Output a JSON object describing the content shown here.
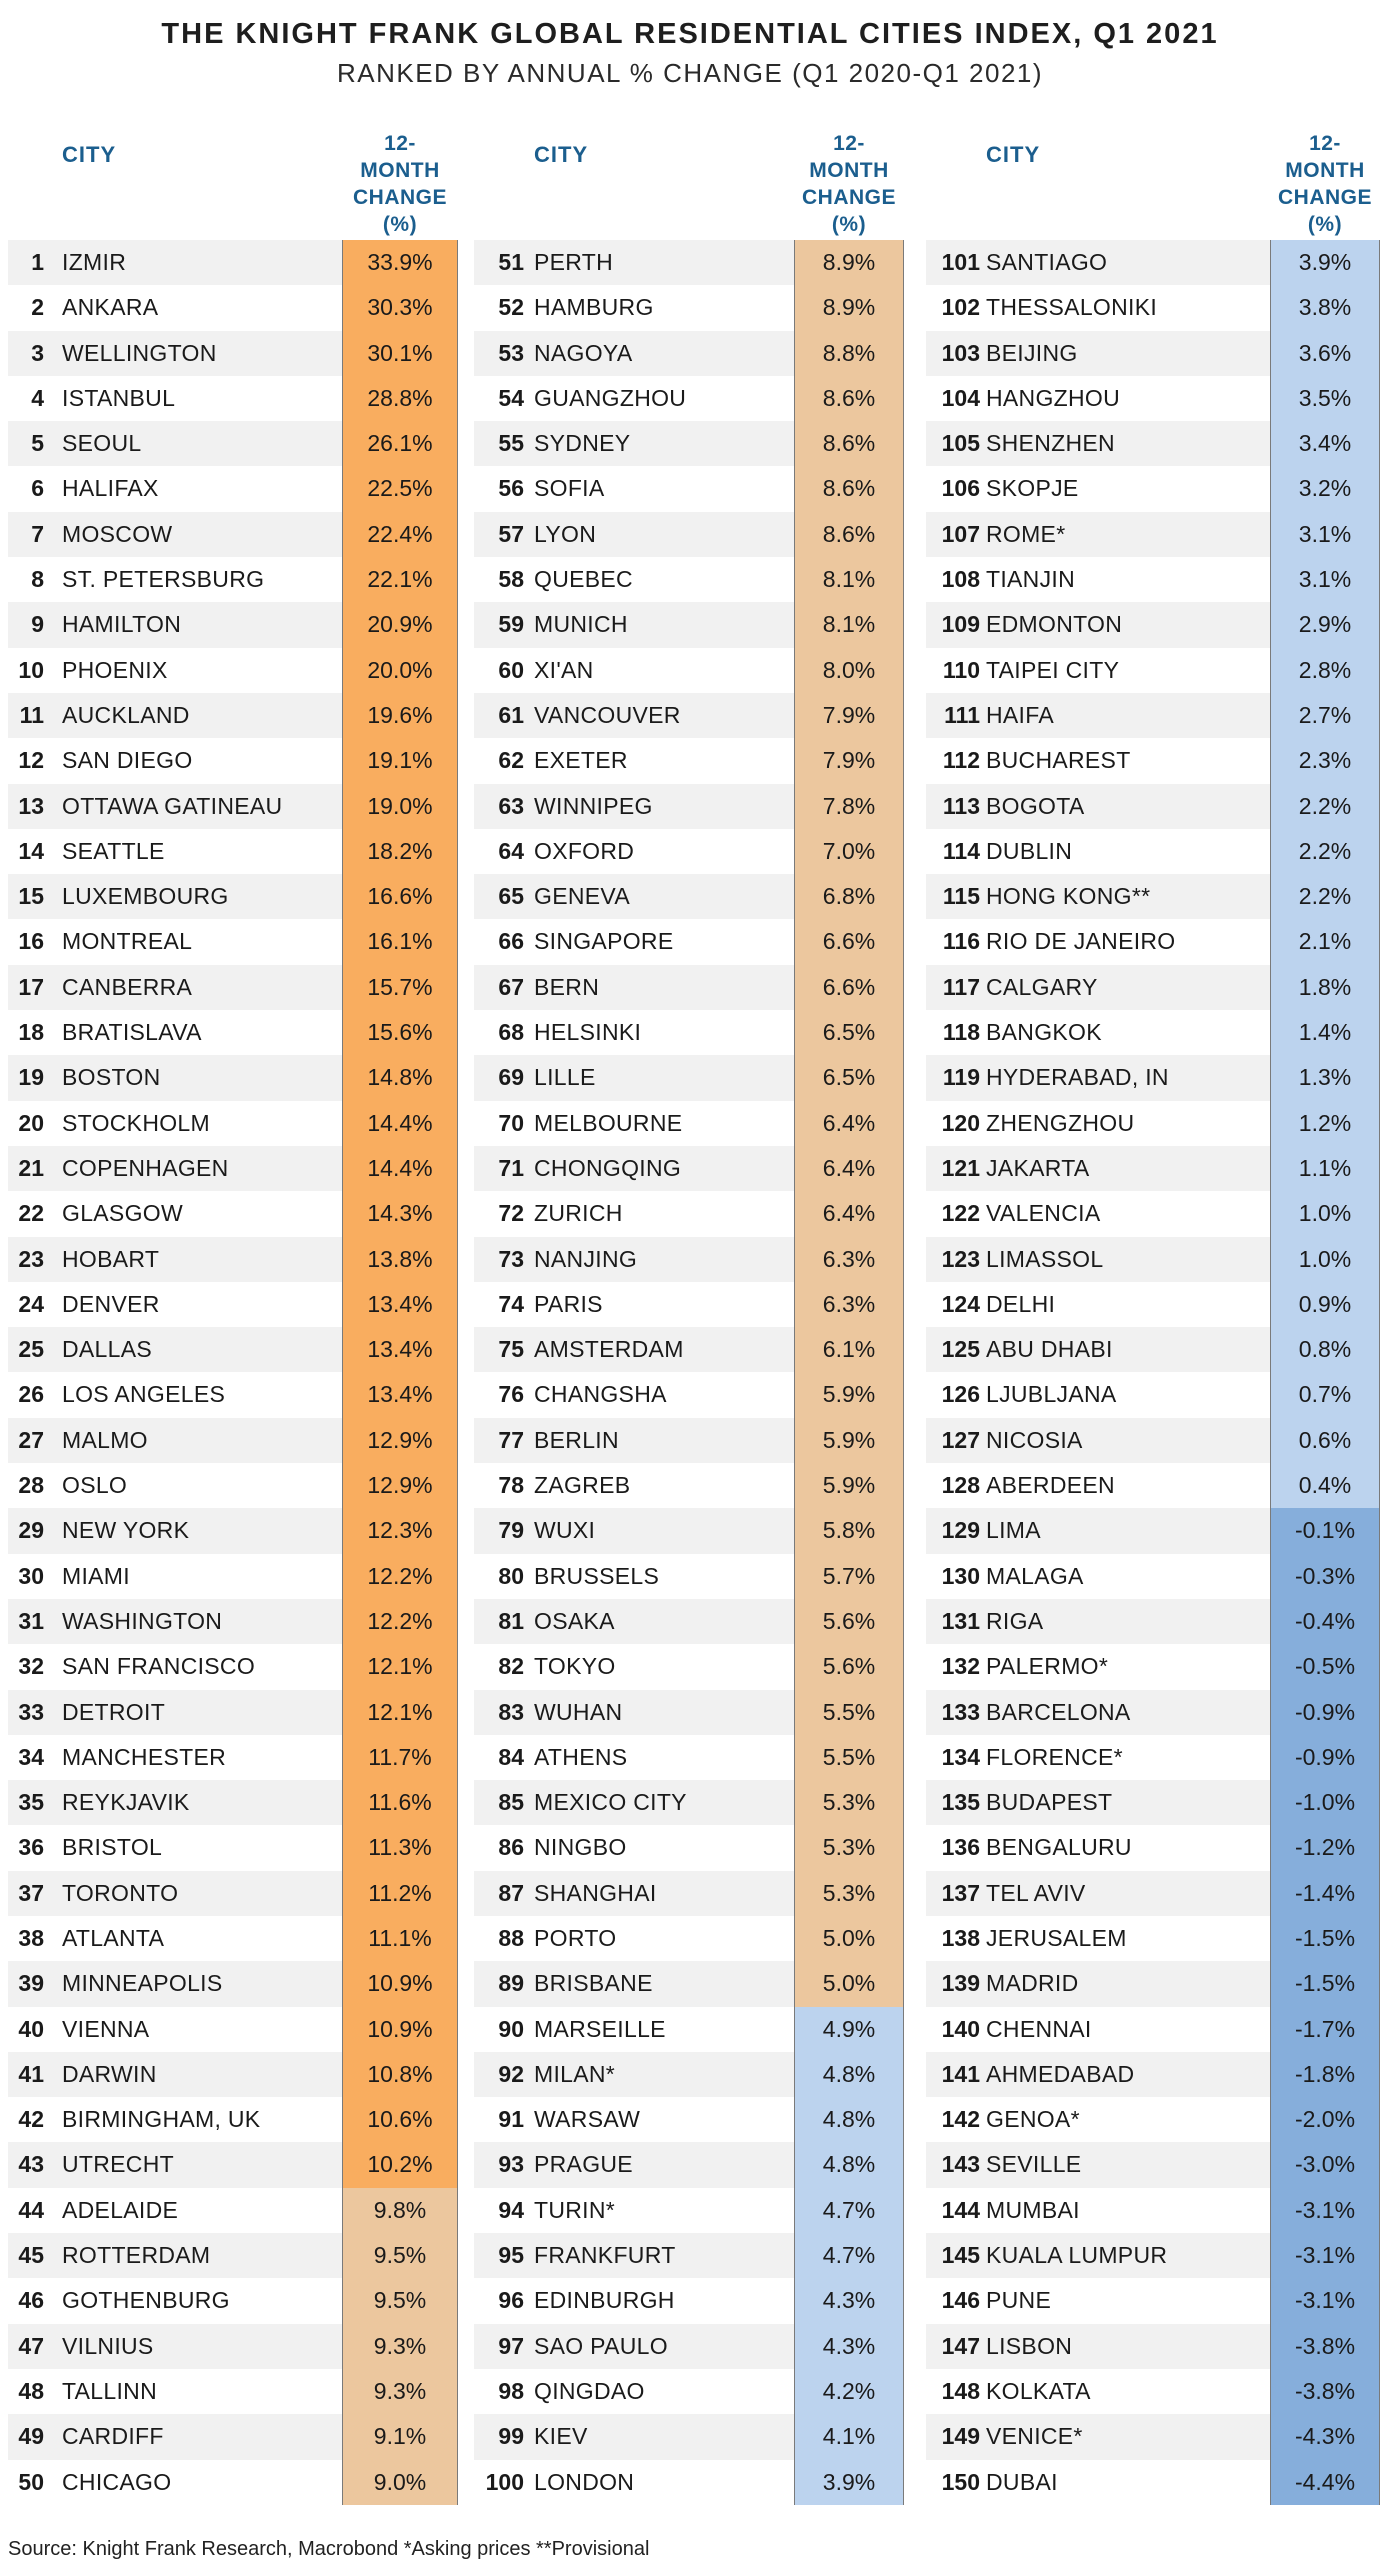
{
  "title": "THE KNIGHT FRANK GLOBAL RESIDENTIAL CITIES INDEX, Q1 2021",
  "subtitle": "RANKED BY ANNUAL % CHANGE (Q1 2020-Q1 2021)",
  "column_headers": {
    "city": "CITY",
    "change": [
      "12-",
      "MONTH",
      "CHANGE",
      "(%)"
    ]
  },
  "colors": {
    "strong_growth": "#f9ad5f",
    "moderate_growth": "#ecc79e",
    "low_growth": "#bcd3ee",
    "decline": "#86aedb",
    "header_text": "#1b5e8e"
  },
  "chart_data": {
    "type": "table",
    "title": "THE KNIGHT FRANK GLOBAL RESIDENTIAL CITIES INDEX, Q1 2021",
    "subtitle": "RANKED BY ANNUAL % CHANGE (Q1 2020-Q1 2021)",
    "columns": [
      "Rank",
      "City",
      "12-month change (%)"
    ],
    "rows": [
      {
        "rank": 1,
        "city": "IZMIR",
        "value": 33.9,
        "label": "33.9%"
      },
      {
        "rank": 2,
        "city": "ANKARA",
        "value": 30.3,
        "label": "30.3%"
      },
      {
        "rank": 3,
        "city": "WELLINGTON",
        "value": 30.1,
        "label": "30.1%"
      },
      {
        "rank": 4,
        "city": "ISTANBUL",
        "value": 28.8,
        "label": "28.8%"
      },
      {
        "rank": 5,
        "city": "SEOUL",
        "value": 26.1,
        "label": "26.1%"
      },
      {
        "rank": 6,
        "city": "HALIFAX",
        "value": 22.5,
        "label": "22.5%"
      },
      {
        "rank": 7,
        "city": "MOSCOW",
        "value": 22.4,
        "label": "22.4%"
      },
      {
        "rank": 8,
        "city": "ST. PETERSBURG",
        "value": 22.1,
        "label": "22.1%"
      },
      {
        "rank": 9,
        "city": "HAMILTON",
        "value": 20.9,
        "label": "20.9%"
      },
      {
        "rank": 10,
        "city": "PHOENIX",
        "value": 20.0,
        "label": "20.0%"
      },
      {
        "rank": 11,
        "city": "AUCKLAND",
        "value": 19.6,
        "label": "19.6%"
      },
      {
        "rank": 12,
        "city": "SAN DIEGO",
        "value": 19.1,
        "label": "19.1%"
      },
      {
        "rank": 13,
        "city": "OTTAWA GATINEAU",
        "value": 19.0,
        "label": "19.0%"
      },
      {
        "rank": 14,
        "city": "SEATTLE",
        "value": 18.2,
        "label": "18.2%"
      },
      {
        "rank": 15,
        "city": "LUXEMBOURG",
        "value": 16.6,
        "label": "16.6%"
      },
      {
        "rank": 16,
        "city": "MONTREAL",
        "value": 16.1,
        "label": "16.1%"
      },
      {
        "rank": 17,
        "city": "CANBERRA",
        "value": 15.7,
        "label": "15.7%"
      },
      {
        "rank": 18,
        "city": "BRATISLAVA",
        "value": 15.6,
        "label": "15.6%"
      },
      {
        "rank": 19,
        "city": "BOSTON",
        "value": 14.8,
        "label": "14.8%"
      },
      {
        "rank": 20,
        "city": "STOCKHOLM",
        "value": 14.4,
        "label": "14.4%"
      },
      {
        "rank": 21,
        "city": "COPENHAGEN",
        "value": 14.4,
        "label": "14.4%"
      },
      {
        "rank": 22,
        "city": "GLASGOW",
        "value": 14.3,
        "label": "14.3%"
      },
      {
        "rank": 23,
        "city": "HOBART",
        "value": 13.8,
        "label": "13.8%"
      },
      {
        "rank": 24,
        "city": "DENVER",
        "value": 13.4,
        "label": "13.4%"
      },
      {
        "rank": 25,
        "city": "DALLAS",
        "value": 13.4,
        "label": "13.4%"
      },
      {
        "rank": 26,
        "city": "LOS ANGELES",
        "value": 13.4,
        "label": "13.4%"
      },
      {
        "rank": 27,
        "city": "MALMO",
        "value": 12.9,
        "label": "12.9%"
      },
      {
        "rank": 28,
        "city": "OSLO",
        "value": 12.9,
        "label": "12.9%"
      },
      {
        "rank": 29,
        "city": "NEW YORK",
        "value": 12.3,
        "label": "12.3%"
      },
      {
        "rank": 30,
        "city": "MIAMI",
        "value": 12.2,
        "label": "12.2%"
      },
      {
        "rank": 31,
        "city": "WASHINGTON",
        "value": 12.2,
        "label": "12.2%"
      },
      {
        "rank": 32,
        "city": "SAN FRANCISCO",
        "value": 12.1,
        "label": "12.1%"
      },
      {
        "rank": 33,
        "city": "DETROIT",
        "value": 12.1,
        "label": "12.1%"
      },
      {
        "rank": 34,
        "city": "MANCHESTER",
        "value": 11.7,
        "label": "11.7%"
      },
      {
        "rank": 35,
        "city": "REYKJAVIK",
        "value": 11.6,
        "label": "11.6%"
      },
      {
        "rank": 36,
        "city": "BRISTOL",
        "value": 11.3,
        "label": "11.3%"
      },
      {
        "rank": 37,
        "city": "TORONTO",
        "value": 11.2,
        "label": "11.2%"
      },
      {
        "rank": 38,
        "city": "ATLANTA",
        "value": 11.1,
        "label": "11.1%"
      },
      {
        "rank": 39,
        "city": "MINNEAPOLIS",
        "value": 10.9,
        "label": "10.9%"
      },
      {
        "rank": 40,
        "city": "VIENNA",
        "value": 10.9,
        "label": "10.9%"
      },
      {
        "rank": 41,
        "city": "DARWIN",
        "value": 10.8,
        "label": "10.8%"
      },
      {
        "rank": 42,
        "city": "BIRMINGHAM, UK",
        "value": 10.6,
        "label": "10.6%"
      },
      {
        "rank": 43,
        "city": "UTRECHT",
        "value": 10.2,
        "label": "10.2%"
      },
      {
        "rank": 44,
        "city": "ADELAIDE",
        "value": 9.8,
        "label": "9.8%"
      },
      {
        "rank": 45,
        "city": "ROTTERDAM",
        "value": 9.5,
        "label": "9.5%"
      },
      {
        "rank": 46,
        "city": "GOTHENBURG",
        "value": 9.5,
        "label": "9.5%"
      },
      {
        "rank": 47,
        "city": "VILNIUS",
        "value": 9.3,
        "label": "9.3%"
      },
      {
        "rank": 48,
        "city": "TALLINN",
        "value": 9.3,
        "label": "9.3%"
      },
      {
        "rank": 49,
        "city": "CARDIFF",
        "value": 9.1,
        "label": "9.1%"
      },
      {
        "rank": 50,
        "city": "CHICAGO",
        "value": 9.0,
        "label": "9.0%"
      },
      {
        "rank": 51,
        "city": "PERTH",
        "value": 8.9,
        "label": "8.9%"
      },
      {
        "rank": 52,
        "city": "HAMBURG",
        "value": 8.9,
        "label": "8.9%"
      },
      {
        "rank": 53,
        "city": "NAGOYA",
        "value": 8.8,
        "label": "8.8%"
      },
      {
        "rank": 54,
        "city": "GUANGZHOU",
        "value": 8.6,
        "label": "8.6%"
      },
      {
        "rank": 55,
        "city": "SYDNEY",
        "value": 8.6,
        "label": "8.6%"
      },
      {
        "rank": 56,
        "city": "SOFIA",
        "value": 8.6,
        "label": "8.6%"
      },
      {
        "rank": 57,
        "city": "LYON",
        "value": 8.6,
        "label": "8.6%"
      },
      {
        "rank": 58,
        "city": "QUEBEC",
        "value": 8.1,
        "label": "8.1%"
      },
      {
        "rank": 59,
        "city": "MUNICH",
        "value": 8.1,
        "label": "8.1%"
      },
      {
        "rank": 60,
        "city": "XI'AN",
        "value": 8.0,
        "label": "8.0%"
      },
      {
        "rank": 61,
        "city": "VANCOUVER",
        "value": 7.9,
        "label": "7.9%"
      },
      {
        "rank": 62,
        "city": "EXETER",
        "value": 7.9,
        "label": "7.9%"
      },
      {
        "rank": 63,
        "city": "WINNIPEG",
        "value": 7.8,
        "label": "7.8%"
      },
      {
        "rank": 64,
        "city": "OXFORD",
        "value": 7.0,
        "label": "7.0%"
      },
      {
        "rank": 65,
        "city": "GENEVA",
        "value": 6.8,
        "label": "6.8%"
      },
      {
        "rank": 66,
        "city": "SINGAPORE",
        "value": 6.6,
        "label": "6.6%"
      },
      {
        "rank": 67,
        "city": "BERN",
        "value": 6.6,
        "label": "6.6%"
      },
      {
        "rank": 68,
        "city": "HELSINKI",
        "value": 6.5,
        "label": "6.5%"
      },
      {
        "rank": 69,
        "city": "LILLE",
        "value": 6.5,
        "label": "6.5%"
      },
      {
        "rank": 70,
        "city": "MELBOURNE",
        "value": 6.4,
        "label": "6.4%"
      },
      {
        "rank": 71,
        "city": "CHONGQING",
        "value": 6.4,
        "label": "6.4%"
      },
      {
        "rank": 72,
        "city": "ZURICH",
        "value": 6.4,
        "label": "6.4%"
      },
      {
        "rank": 73,
        "city": "NANJING",
        "value": 6.3,
        "label": "6.3%"
      },
      {
        "rank": 74,
        "city": "PARIS",
        "value": 6.3,
        "label": "6.3%"
      },
      {
        "rank": 75,
        "city": "AMSTERDAM",
        "value": 6.1,
        "label": "6.1%"
      },
      {
        "rank": 76,
        "city": "CHANGSHA",
        "value": 5.9,
        "label": "5.9%"
      },
      {
        "rank": 77,
        "city": "BERLIN",
        "value": 5.9,
        "label": "5.9%"
      },
      {
        "rank": 78,
        "city": "ZAGREB",
        "value": 5.9,
        "label": "5.9%"
      },
      {
        "rank": 79,
        "city": "WUXI",
        "value": 5.8,
        "label": "5.8%"
      },
      {
        "rank": 80,
        "city": "BRUSSELS",
        "value": 5.7,
        "label": "5.7%"
      },
      {
        "rank": 81,
        "city": "OSAKA",
        "value": 5.6,
        "label": "5.6%"
      },
      {
        "rank": 82,
        "city": "TOKYO",
        "value": 5.6,
        "label": "5.6%"
      },
      {
        "rank": 83,
        "city": "WUHAN",
        "value": 5.5,
        "label": "5.5%"
      },
      {
        "rank": 84,
        "city": "ATHENS",
        "value": 5.5,
        "label": "5.5%"
      },
      {
        "rank": 85,
        "city": "MEXICO CITY",
        "value": 5.3,
        "label": "5.3%"
      },
      {
        "rank": 86,
        "city": "NINGBO",
        "value": 5.3,
        "label": "5.3%"
      },
      {
        "rank": 87,
        "city": "SHANGHAI",
        "value": 5.3,
        "label": "5.3%"
      },
      {
        "rank": 88,
        "city": "PORTO",
        "value": 5.0,
        "label": "5.0%"
      },
      {
        "rank": 89,
        "city": "BRISBANE",
        "value": 5.0,
        "label": "5.0%"
      },
      {
        "rank": 90,
        "city": "MARSEILLE",
        "value": 4.9,
        "label": "4.9%"
      },
      {
        "rank": 92,
        "city": "MILAN*",
        "value": 4.8,
        "label": "4.8%"
      },
      {
        "rank": 91,
        "city": "WARSAW",
        "value": 4.8,
        "label": "4.8%"
      },
      {
        "rank": 93,
        "city": "PRAGUE",
        "value": 4.8,
        "label": "4.8%"
      },
      {
        "rank": 94,
        "city": "TURIN*",
        "value": 4.7,
        "label": "4.7%"
      },
      {
        "rank": 95,
        "city": "FRANKFURT",
        "value": 4.7,
        "label": "4.7%"
      },
      {
        "rank": 96,
        "city": "EDINBURGH",
        "value": 4.3,
        "label": "4.3%"
      },
      {
        "rank": 97,
        "city": "SAO PAULO",
        "value": 4.3,
        "label": "4.3%"
      },
      {
        "rank": 98,
        "city": "QINGDAO",
        "value": 4.2,
        "label": "4.2%"
      },
      {
        "rank": 99,
        "city": "KIEV",
        "value": 4.1,
        "label": "4.1%"
      },
      {
        "rank": 100,
        "city": "LONDON",
        "value": 3.9,
        "label": "3.9%"
      },
      {
        "rank": 101,
        "city": "SANTIAGO",
        "value": 3.9,
        "label": "3.9%"
      },
      {
        "rank": 102,
        "city": "THESSALONIKI",
        "value": 3.8,
        "label": "3.8%"
      },
      {
        "rank": 103,
        "city": "BEIJING",
        "value": 3.6,
        "label": "3.6%"
      },
      {
        "rank": 104,
        "city": "HANGZHOU",
        "value": 3.5,
        "label": "3.5%"
      },
      {
        "rank": 105,
        "city": "SHENZHEN",
        "value": 3.4,
        "label": "3.4%"
      },
      {
        "rank": 106,
        "city": "SKOPJE",
        "value": 3.2,
        "label": "3.2%"
      },
      {
        "rank": 107,
        "city": "ROME*",
        "value": 3.1,
        "label": "3.1%"
      },
      {
        "rank": 108,
        "city": "TIANJIN",
        "value": 3.1,
        "label": "3.1%"
      },
      {
        "rank": 109,
        "city": "EDMONTON",
        "value": 2.9,
        "label": "2.9%"
      },
      {
        "rank": 110,
        "city": "TAIPEI CITY",
        "value": 2.8,
        "label": "2.8%"
      },
      {
        "rank": 111,
        "city": "HAIFA",
        "value": 2.7,
        "label": "2.7%"
      },
      {
        "rank": 112,
        "city": "BUCHAREST",
        "value": 2.3,
        "label": "2.3%"
      },
      {
        "rank": 113,
        "city": "BOGOTA",
        "value": 2.2,
        "label": "2.2%"
      },
      {
        "rank": 114,
        "city": "DUBLIN",
        "value": 2.2,
        "label": "2.2%"
      },
      {
        "rank": 115,
        "city": "HONG KONG**",
        "value": 2.2,
        "label": "2.2%"
      },
      {
        "rank": 116,
        "city": "RIO DE JANEIRO",
        "value": 2.1,
        "label": "2.1%"
      },
      {
        "rank": 117,
        "city": "CALGARY",
        "value": 1.8,
        "label": "1.8%"
      },
      {
        "rank": 118,
        "city": "BANGKOK",
        "value": 1.4,
        "label": "1.4%"
      },
      {
        "rank": 119,
        "city": "HYDERABAD, IN",
        "value": 1.3,
        "label": "1.3%"
      },
      {
        "rank": 120,
        "city": "ZHENGZHOU",
        "value": 1.2,
        "label": "1.2%"
      },
      {
        "rank": 121,
        "city": "JAKARTA",
        "value": 1.1,
        "label": "1.1%"
      },
      {
        "rank": 122,
        "city": "VALENCIA",
        "value": 1.0,
        "label": "1.0%"
      },
      {
        "rank": 123,
        "city": "LIMASSOL",
        "value": 1.0,
        "label": "1.0%"
      },
      {
        "rank": 124,
        "city": "DELHI",
        "value": 0.9,
        "label": "0.9%"
      },
      {
        "rank": 125,
        "city": "ABU DHABI",
        "value": 0.8,
        "label": "0.8%"
      },
      {
        "rank": 126,
        "city": "LJUBLJANA",
        "value": 0.7,
        "label": "0.7%"
      },
      {
        "rank": 127,
        "city": "NICOSIA",
        "value": 0.6,
        "label": "0.6%"
      },
      {
        "rank": 128,
        "city": "ABERDEEN",
        "value": 0.4,
        "label": "0.4%"
      },
      {
        "rank": 129,
        "city": "LIMA",
        "value": -0.1,
        "label": "-0.1%"
      },
      {
        "rank": 130,
        "city": "MALAGA",
        "value": -0.3,
        "label": "-0.3%"
      },
      {
        "rank": 131,
        "city": "RIGA",
        "value": -0.4,
        "label": "-0.4%"
      },
      {
        "rank": 132,
        "city": "PALERMO*",
        "value": -0.5,
        "label": "-0.5%"
      },
      {
        "rank": 133,
        "city": "BARCELONA",
        "value": -0.9,
        "label": "-0.9%"
      },
      {
        "rank": 134,
        "city": "FLORENCE*",
        "value": -0.9,
        "label": "-0.9%"
      },
      {
        "rank": 135,
        "city": "BUDAPEST",
        "value": -1.0,
        "label": "-1.0%"
      },
      {
        "rank": 136,
        "city": "BENGALURU",
        "value": -1.2,
        "label": "-1.2%"
      },
      {
        "rank": 137,
        "city": "TEL AVIV",
        "value": -1.4,
        "label": "-1.4%"
      },
      {
        "rank": 138,
        "city": "JERUSALEM",
        "value": -1.5,
        "label": "-1.5%"
      },
      {
        "rank": 139,
        "city": "MADRID",
        "value": -1.5,
        "label": "-1.5%"
      },
      {
        "rank": 140,
        "city": "CHENNAI",
        "value": -1.7,
        "label": "-1.7%"
      },
      {
        "rank": 141,
        "city": "AHMEDABAD",
        "value": -1.8,
        "label": "-1.8%"
      },
      {
        "rank": 142,
        "city": "GENOA*",
        "value": -2.0,
        "label": "-2.0%"
      },
      {
        "rank": 143,
        "city": "SEVILLE",
        "value": -3.0,
        "label": "-3.0%"
      },
      {
        "rank": 144,
        "city": "MUMBAI",
        "value": -3.1,
        "label": "-3.1%"
      },
      {
        "rank": 145,
        "city": "KUALA LUMPUR",
        "value": -3.1,
        "label": "-3.1%"
      },
      {
        "rank": 146,
        "city": "PUNE",
        "value": -3.1,
        "label": "-3.1%"
      },
      {
        "rank": 147,
        "city": "LISBON",
        "value": -3.8,
        "label": "-3.8%"
      },
      {
        "rank": 148,
        "city": "KOLKATA",
        "value": -3.8,
        "label": "-3.8%"
      },
      {
        "rank": 149,
        "city": "VENICE*",
        "value": -4.3,
        "label": "-4.3%"
      },
      {
        "rank": 150,
        "city": "DUBAI",
        "value": -4.4,
        "label": "-4.4%"
      }
    ]
  },
  "source": "Source: Knight Frank Research, Macrobond  *Asking prices **Provisional"
}
